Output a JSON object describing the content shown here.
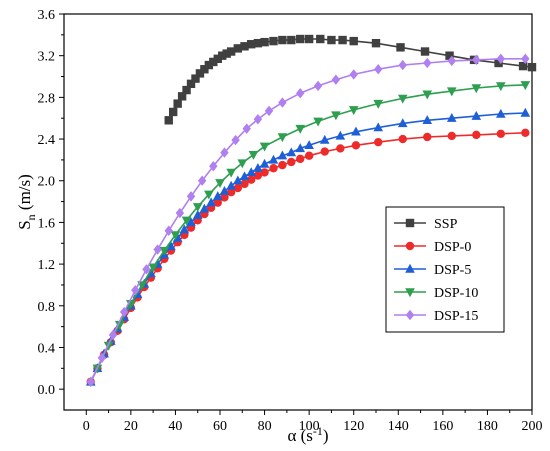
{
  "chart_data": {
    "type": "line",
    "xlabel": "α (s",
    "xlabel_sup": "-1",
    "xlabel_end": ")",
    "ylabel": "S",
    "ylabel_sub": "n",
    "ylabel_end": " (m/s)",
    "xlim": [
      -10,
      200
    ],
    "ylim": [
      -0.2,
      3.6
    ],
    "xticks": [
      0,
      20,
      40,
      60,
      80,
      100,
      120,
      140,
      160,
      180,
      200
    ],
    "yticks": [
      0.0,
      0.4,
      0.8,
      1.2,
      1.6,
      2.0,
      2.4,
      2.8,
      3.2,
      3.6
    ],
    "ytick_labels": [
      "0.0",
      "0.4",
      "0.8",
      "1.2",
      "1.6",
      "2.0",
      "2.4",
      "2.8",
      "3.2",
      "3.6"
    ],
    "legend_position": "lower-right",
    "series": [
      {
        "name": "SSP",
        "color": "#404040",
        "marker": "square",
        "x": [
          37,
          39,
          41,
          43,
          45,
          47,
          49,
          51,
          53,
          55,
          57,
          59,
          61,
          63,
          65,
          68,
          71,
          74,
          77,
          80,
          84,
          88,
          92,
          96,
          100,
          105,
          110,
          115,
          120,
          130,
          141,
          152,
          163,
          174,
          185,
          196,
          200
        ],
        "y": [
          2.58,
          2.66,
          2.74,
          2.81,
          2.87,
          2.93,
          2.98,
          3.03,
          3.07,
          3.11,
          3.14,
          3.17,
          3.2,
          3.22,
          3.24,
          3.27,
          3.29,
          3.31,
          3.32,
          3.33,
          3.34,
          3.35,
          3.35,
          3.36,
          3.36,
          3.36,
          3.35,
          3.35,
          3.34,
          3.32,
          3.28,
          3.24,
          3.2,
          3.16,
          3.13,
          3.1,
          3.09
        ]
      },
      {
        "name": "DSP-0",
        "color": "#ee2b2b",
        "marker": "circle",
        "x": [
          2,
          5,
          8,
          11,
          14,
          17,
          20,
          23,
          26,
          29,
          32,
          35,
          38,
          41,
          44,
          47,
          50,
          53,
          56,
          59,
          62,
          65,
          68,
          71,
          74,
          77,
          80,
          84,
          88,
          92,
          96,
          100,
          107,
          114,
          121,
          131,
          142,
          153,
          164,
          175,
          186,
          197
        ],
        "y": [
          0.07,
          0.2,
          0.33,
          0.45,
          0.56,
          0.67,
          0.78,
          0.88,
          0.98,
          1.07,
          1.16,
          1.25,
          1.33,
          1.41,
          1.48,
          1.55,
          1.62,
          1.68,
          1.74,
          1.79,
          1.84,
          1.89,
          1.93,
          1.97,
          2.01,
          2.05,
          2.08,
          2.12,
          2.15,
          2.18,
          2.21,
          2.24,
          2.28,
          2.31,
          2.34,
          2.37,
          2.4,
          2.42,
          2.43,
          2.44,
          2.45,
          2.46
        ]
      },
      {
        "name": "DSP-5",
        "color": "#1f5fd6",
        "marker": "triangle-up",
        "x": [
          2,
          5,
          8,
          11,
          14,
          17,
          20,
          23,
          26,
          29,
          32,
          35,
          38,
          41,
          44,
          47,
          50,
          53,
          56,
          59,
          62,
          65,
          68,
          71,
          74,
          77,
          80,
          84,
          88,
          92,
          96,
          100,
          107,
          114,
          121,
          131,
          142,
          153,
          164,
          175,
          186,
          197
        ],
        "y": [
          0.07,
          0.2,
          0.34,
          0.46,
          0.58,
          0.69,
          0.8,
          0.91,
          1.01,
          1.11,
          1.2,
          1.29,
          1.37,
          1.45,
          1.53,
          1.6,
          1.67,
          1.73,
          1.79,
          1.85,
          1.9,
          1.95,
          2.0,
          2.04,
          2.08,
          2.12,
          2.16,
          2.2,
          2.24,
          2.27,
          2.31,
          2.34,
          2.39,
          2.43,
          2.47,
          2.51,
          2.55,
          2.58,
          2.6,
          2.62,
          2.64,
          2.65
        ]
      },
      {
        "name": "DSP-10",
        "color": "#2e9e4f",
        "marker": "triangle-down",
        "x": [
          5,
          10,
          15,
          20,
          25,
          30,
          35,
          40,
          45,
          50,
          55,
          60,
          65,
          70,
          75,
          80,
          88,
          96,
          104,
          112,
          120,
          131,
          142,
          153,
          164,
          175,
          186,
          197
        ],
        "y": [
          0.2,
          0.42,
          0.62,
          0.82,
          1.0,
          1.17,
          1.33,
          1.48,
          1.62,
          1.75,
          1.87,
          1.98,
          2.08,
          2.17,
          2.25,
          2.33,
          2.42,
          2.5,
          2.57,
          2.63,
          2.68,
          2.74,
          2.79,
          2.83,
          2.86,
          2.89,
          2.91,
          2.92
        ]
      },
      {
        "name": "DSP-15",
        "color": "#b07ff0",
        "marker": "diamond",
        "x": [
          2,
          7,
          12,
          17,
          22,
          27,
          32,
          37,
          42,
          47,
          52,
          57,
          62,
          67,
          72,
          77,
          82,
          88,
          96,
          104,
          112,
          120,
          131,
          142,
          153,
          164,
          175,
          186,
          197
        ],
        "y": [
          0.07,
          0.3,
          0.52,
          0.74,
          0.95,
          1.15,
          1.34,
          1.52,
          1.69,
          1.85,
          2.0,
          2.14,
          2.27,
          2.39,
          2.5,
          2.59,
          2.67,
          2.75,
          2.84,
          2.91,
          2.97,
          3.02,
          3.07,
          3.11,
          3.13,
          3.15,
          3.16,
          3.17,
          3.17
        ]
      }
    ]
  }
}
